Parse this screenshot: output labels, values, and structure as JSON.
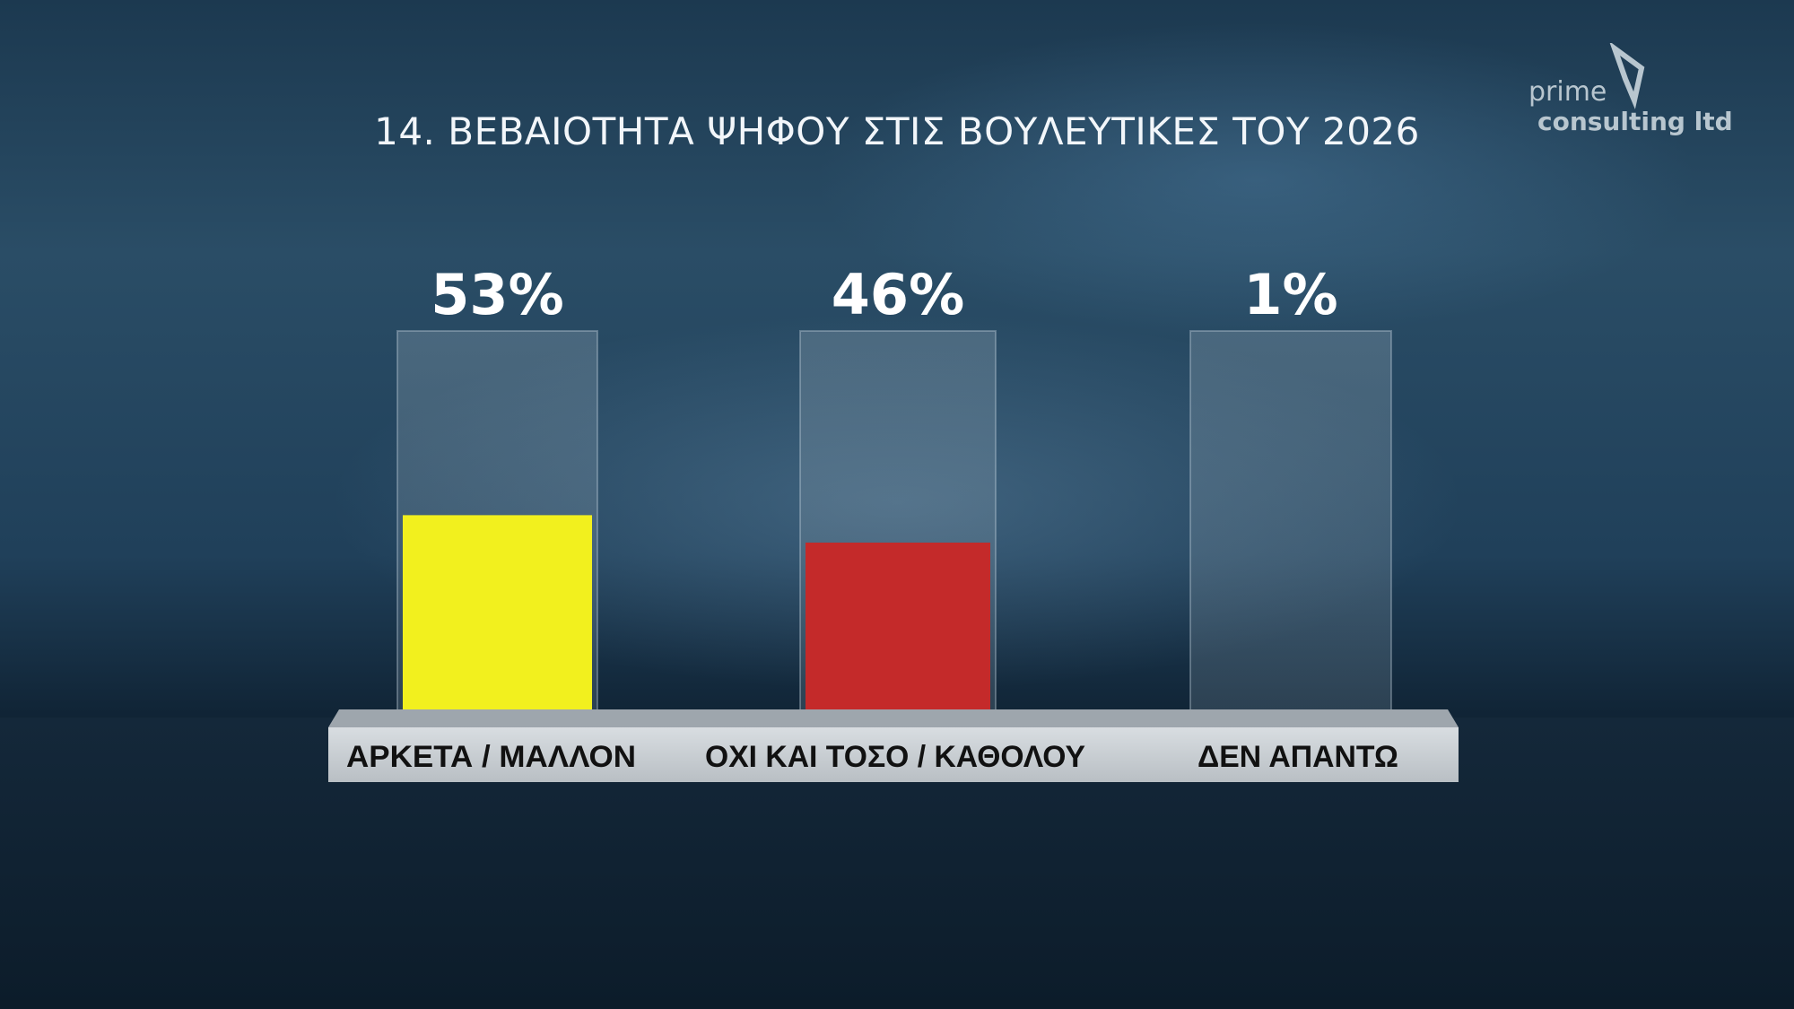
{
  "title": "14. ΒΕΒΑΙΟΤΗΤΑ ΨΗΦΟΥ ΣΤΙΣ ΒΟΥΛΕΥΤΙΚΕΣ ΤΟΥ 2026",
  "logo": {
    "line1": "prime",
    "line2": "consulting ltd"
  },
  "chart_data": {
    "type": "bar",
    "title": "14. ΒΕΒΑΙΟΤΗΤΑ ΨΗΦΟΥ ΣΤΙΣ ΒΟΥΛΕΥΤΙΚΕΣ ΤΟΥ 2026",
    "categories": [
      "ΑΡΚΕΤΑ / ΜΑΛΛΟΝ",
      "ΟΧΙ ΚΑΙ ΤΟΣΟ / ΚΑΘΟΛΟΥ",
      "ΔΕΝ ΑΠΑΝΤΩ"
    ],
    "values": [
      53,
      46,
      1
    ],
    "labels": [
      "53%",
      "46%",
      "1%"
    ],
    "colors": [
      "#f2f01e",
      "#c42a2a",
      "#2fb88a"
    ],
    "ylim": [
      0,
      100
    ],
    "grid": false
  }
}
